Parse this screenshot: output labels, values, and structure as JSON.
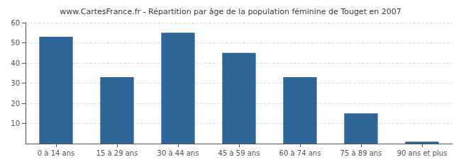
{
  "chart_data": {
    "type": "bar",
    "title": "www.CartesFrance.fr - Répartition par âge de la population féminine de Touget en 2007",
    "categories": [
      "0 à 14 ans",
      "15 à 29 ans",
      "30 à 44 ans",
      "45 à 59 ans",
      "60 à 74 ans",
      "75 à 89 ans",
      "90 ans et plus"
    ],
    "values": [
      53,
      33,
      55,
      45,
      33,
      15,
      1
    ],
    "color": "#2e6496",
    "ylim": [
      0,
      60
    ],
    "yticks": [
      10,
      20,
      30,
      40,
      50,
      60
    ],
    "grid": true
  }
}
